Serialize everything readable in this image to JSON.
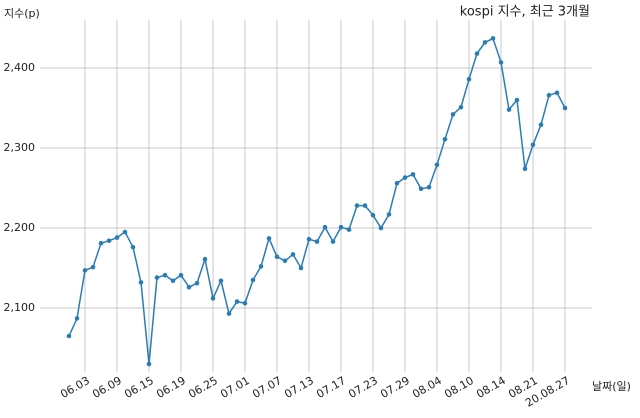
{
  "chart_data": {
    "type": "line",
    "title": "kospi 지수, 최근 3개월",
    "y_label": "지수(p)",
    "x_label": "날짜(일)",
    "categories": [
      null,
      null,
      "06.03",
      null,
      null,
      null,
      "06.09",
      null,
      null,
      null,
      "06.15",
      null,
      null,
      null,
      "06.19",
      null,
      null,
      null,
      "06.25",
      null,
      null,
      null,
      "07.01",
      null,
      null,
      null,
      "07.07",
      null,
      null,
      null,
      "07.13",
      null,
      null,
      null,
      "07.17",
      null,
      null,
      null,
      "07.23",
      null,
      null,
      null,
      "07.29",
      null,
      null,
      null,
      "08.04",
      null,
      null,
      null,
      "08.10",
      null,
      null,
      null,
      "08.14",
      null,
      null,
      null,
      "08.21",
      null,
      null,
      null,
      "20.08.27"
    ],
    "series": [
      {
        "name": "kospi",
        "color": "#2a7db3",
        "values": [
          2065,
          2087,
          2147,
          2151,
          2181,
          2184,
          2188,
          2195,
          2176,
          2132,
          2030,
          2138,
          2141,
          2134,
          2141,
          2126,
          2131,
          2161,
          2112,
          2134,
          2093,
          2108,
          2106,
          2135,
          2152,
          2187,
          2164,
          2159,
          2167,
          2150,
          2186,
          2183,
          2201,
          2183,
          2201,
          2198,
          2228,
          2228,
          2216,
          2200,
          2217,
          2256,
          2263,
          2267,
          2249,
          2251,
          2279,
          2311,
          2342,
          2351,
          2386,
          2418,
          2432,
          2437,
          2407,
          2348,
          2360,
          2274,
          2304,
          2329,
          2366,
          2369,
          2350
        ]
      }
    ],
    "ylim": [
      2020,
      2460
    ],
    "yticks": [
      {
        "value": 2100,
        "label": "2,100"
      },
      {
        "value": 2200,
        "label": "2,200"
      },
      {
        "value": 2300,
        "label": "2,300"
      },
      {
        "value": 2400,
        "label": "2,400"
      }
    ],
    "grid": true
  }
}
